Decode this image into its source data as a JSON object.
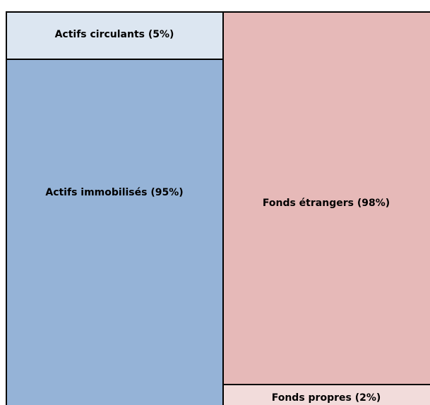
{
  "boxes": [
    {
      "label": "Actifs circulants (5%)"
    },
    {
      "label": "Actifs immobilisés (95%)"
    },
    {
      "label": "Fonds étrangers (98%)"
    },
    {
      "label": "Fonds propres (2%)"
    }
  ]
}
